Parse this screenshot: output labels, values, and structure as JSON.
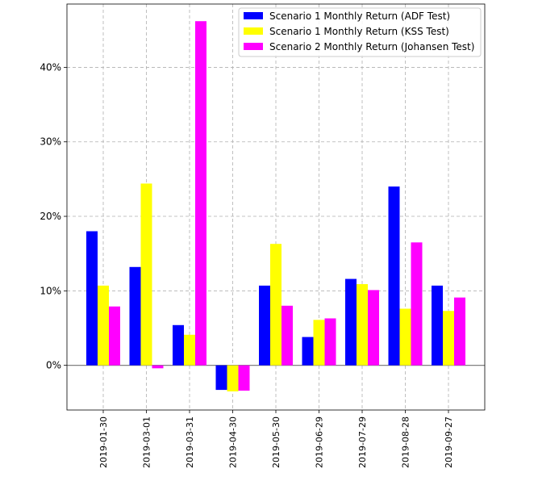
{
  "chart_data": {
    "type": "bar",
    "title": "",
    "xlabel": "",
    "ylabel": "",
    "categories": [
      "2019-01-30",
      "2019-03-01",
      "2019-03-31",
      "2019-04-30",
      "2019-05-30",
      "2019-06-29",
      "2019-07-29",
      "2019-08-28",
      "2019-09-27"
    ],
    "series": [
      {
        "name": "Scenario 1 Monthly Return (ADF Test)",
        "color": "#0000ff",
        "values": [
          18.0,
          13.2,
          5.4,
          -3.3,
          10.7,
          3.8,
          11.6,
          24.0,
          10.7
        ]
      },
      {
        "name": "Scenario 1 Monthly Return (KSS Test)",
        "color": "#ffff00",
        "values": [
          10.7,
          24.4,
          4.1,
          -3.5,
          16.3,
          6.1,
          10.9,
          7.6,
          7.3
        ]
      },
      {
        "name": "Scenario 2 Monthly Return (Johansen Test)",
        "color": "#ff00ff",
        "values": [
          7.9,
          -0.4,
          46.2,
          -3.4,
          8.0,
          6.3,
          10.1,
          16.5,
          9.1
        ]
      }
    ],
    "ylim": [
      -6,
      48.5
    ],
    "yticks": [
      0,
      10,
      20,
      30,
      40
    ],
    "ytick_labels": [
      "0%",
      "10%",
      "20%",
      "30%",
      "40%"
    ],
    "grid": true,
    "legend_position": "top-right"
  }
}
